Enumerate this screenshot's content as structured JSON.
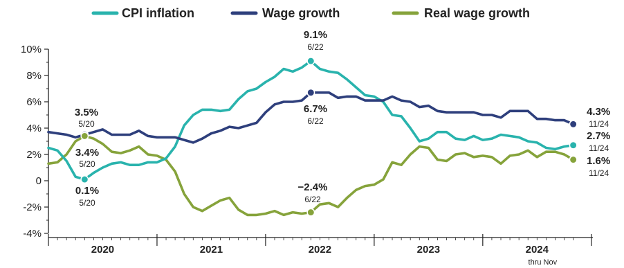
{
  "colors": {
    "cpi": "#29b3ad",
    "wage": "#2e3f7c",
    "real": "#86a33b",
    "axis": "#222222"
  },
  "legend": [
    {
      "name": "CPI inflation",
      "color": "#29b3ad"
    },
    {
      "name": "Wage growth",
      "color": "#2e3f7c"
    },
    {
      "name": "Real wage growth",
      "color": "#86a33b"
    }
  ],
  "chart_data": {
    "type": "line",
    "ylim": [
      -4,
      10
    ],
    "yticks": [
      "10%",
      "8%",
      "6%",
      "4%",
      "2%",
      "0",
      "-2%",
      "-4%"
    ],
    "ytick_values": [
      10,
      8,
      6,
      4,
      2,
      0,
      -2,
      -4
    ],
    "years": [
      {
        "label": "2020",
        "note": ""
      },
      {
        "label": "2021",
        "note": ""
      },
      {
        "label": "2022",
        "note": ""
      },
      {
        "label": "2023",
        "note": ""
      },
      {
        "label": "2024",
        "note": "thru Nov"
      }
    ],
    "x_start": "2020-01",
    "x_end": "2024-11",
    "legend_position": "top",
    "grid": false,
    "series": [
      {
        "name": "CPI inflation",
        "color": "#29b3ad",
        "values": [
          2.5,
          2.3,
          1.5,
          0.3,
          0.1,
          0.6,
          1.0,
          1.3,
          1.4,
          1.2,
          1.2,
          1.4,
          1.4,
          1.7,
          2.6,
          4.2,
          5.0,
          5.4,
          5.4,
          5.3,
          5.4,
          6.2,
          6.8,
          7.0,
          7.5,
          7.9,
          8.5,
          8.3,
          8.6,
          9.1,
          8.5,
          8.3,
          8.2,
          7.7,
          7.1,
          6.5,
          6.4,
          6.0,
          5.0,
          4.9,
          4.0,
          3.0,
          3.2,
          3.7,
          3.7,
          3.2,
          3.1,
          3.4,
          3.1,
          3.2,
          3.5,
          3.4,
          3.3,
          3.0,
          2.9,
          2.5,
          2.4,
          2.6,
          2.7
        ],
        "annotations": [
          {
            "value": "9.1%",
            "date": "6/22",
            "x": "2022-06",
            "y": 9.1
          },
          {
            "value": "0.1%",
            "date": "5/20",
            "x": "2020-05",
            "y": 0.1
          },
          {
            "value": "2.7%",
            "date": "11/24",
            "x": "2024-11",
            "y": 2.7
          }
        ]
      },
      {
        "name": "Wage growth",
        "color": "#2e3f7c",
        "values": [
          3.7,
          3.6,
          3.5,
          3.3,
          3.5,
          3.7,
          3.9,
          3.5,
          3.5,
          3.5,
          3.8,
          3.4,
          3.3,
          3.3,
          3.3,
          3.1,
          2.9,
          3.2,
          3.6,
          3.8,
          4.1,
          4.0,
          4.2,
          4.4,
          5.2,
          5.8,
          6.0,
          6.0,
          6.1,
          6.7,
          6.7,
          6.7,
          6.3,
          6.4,
          6.4,
          6.1,
          6.1,
          6.1,
          6.4,
          6.1,
          6.0,
          5.6,
          5.7,
          5.3,
          5.2,
          5.2,
          5.2,
          5.2,
          5.0,
          5.0,
          4.8,
          5.3,
          5.3,
          5.3,
          4.7,
          4.7,
          4.6,
          4.6,
          4.3
        ],
        "annotations": [
          {
            "value": "3.5%",
            "date": "5/20",
            "x": "2020-05",
            "y": 3.5
          },
          {
            "value": "6.7%",
            "date": "6/22",
            "x": "2022-06",
            "y": 6.7
          },
          {
            "value": "4.3%",
            "date": "11/24",
            "x": "2024-11",
            "y": 4.3
          }
        ]
      },
      {
        "name": "Real wage growth",
        "color": "#86a33b",
        "values": [
          1.3,
          1.4,
          2.0,
          3.0,
          3.4,
          3.2,
          2.8,
          2.2,
          2.1,
          2.3,
          2.6,
          2.0,
          1.9,
          1.6,
          0.7,
          -1.0,
          -2.0,
          -2.3,
          -1.9,
          -1.5,
          -1.3,
          -2.2,
          -2.6,
          -2.6,
          -2.5,
          -2.3,
          -2.6,
          -2.4,
          -2.5,
          -2.4,
          -1.8,
          -1.7,
          -2.0,
          -1.3,
          -0.7,
          -0.4,
          -0.3,
          0.1,
          1.4,
          1.2,
          2.0,
          2.6,
          2.5,
          1.6,
          1.5,
          2.0,
          2.1,
          1.8,
          1.9,
          1.8,
          1.3,
          1.9,
          2.0,
          2.3,
          1.8,
          2.2,
          2.2,
          2.0,
          1.6
        ],
        "annotations": [
          {
            "value": "3.4%",
            "date": "5/20",
            "x": "2020-05",
            "y": 3.4
          },
          {
            "value": "−2.4%",
            "date": "6/22",
            "x": "2022-06",
            "y": -2.4
          },
          {
            "value": "1.6%",
            "date": "11/24",
            "x": "2024-11",
            "y": 1.6
          }
        ]
      }
    ]
  }
}
